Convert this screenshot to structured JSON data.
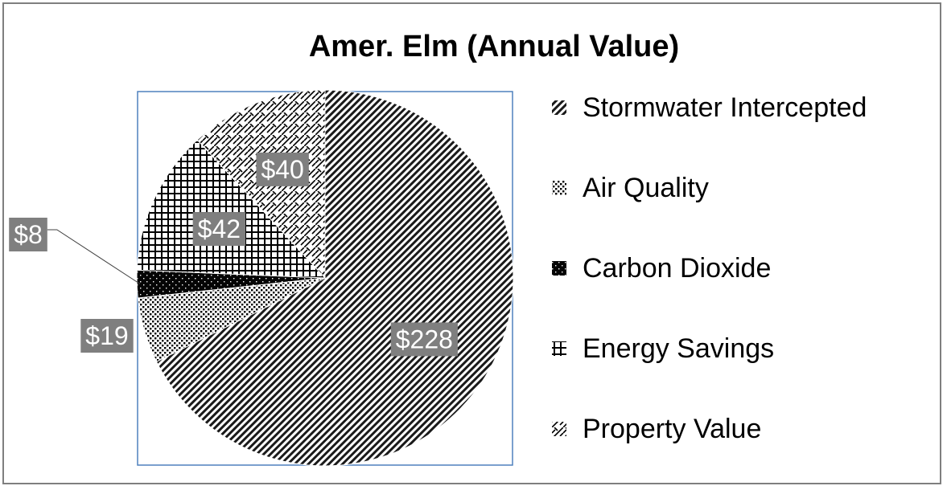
{
  "chart_data": {
    "type": "pie",
    "title": "Amer. Elm (Annual Value)",
    "categories": [
      "Stormwater Intercepted",
      "Air Quality",
      "Carbon Dioxide",
      "Energy Savings",
      "Property Value"
    ],
    "values": [
      228,
      19,
      8,
      42,
      40
    ],
    "data_labels": [
      "$228",
      "$19",
      "$8",
      "$42",
      "$40"
    ],
    "patterns": [
      "diagonal-dense",
      "dots",
      "solid-dark",
      "grid",
      "diagonal-weave"
    ],
    "legend_position": "right",
    "start_angle_deg": 90,
    "direction": "clockwise"
  }
}
